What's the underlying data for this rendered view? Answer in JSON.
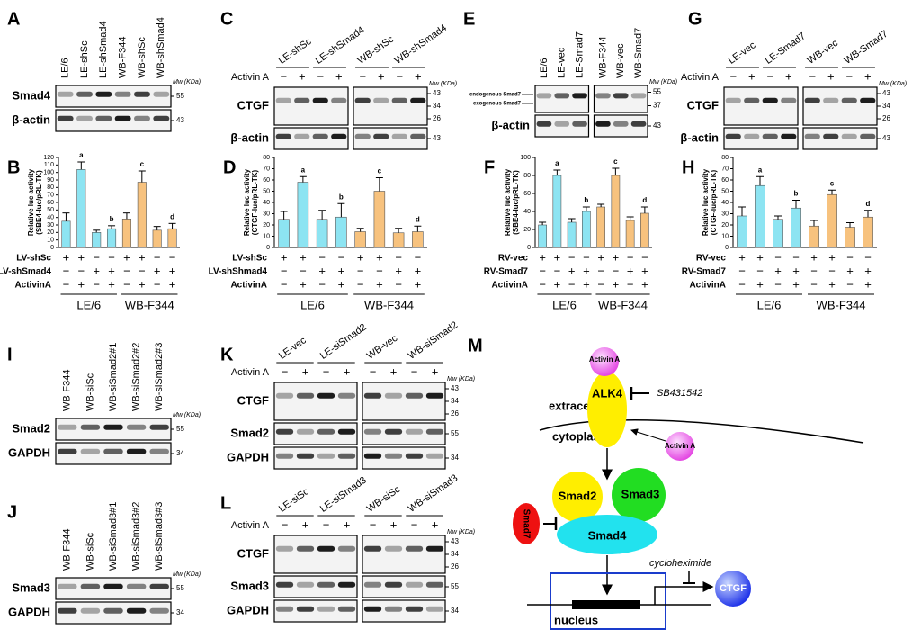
{
  "panels": {
    "A": {
      "letter": "A",
      "lanes": [
        "LE/6",
        "LE-shSc",
        "LE-shSmad4",
        "WB-F344",
        "WB-shSc",
        "WB-shSmad4"
      ],
      "mw_label": "Mw (KDa)",
      "rows": [
        {
          "protein": "Smad4",
          "mw": [
            "55"
          ]
        },
        {
          "protein": "β-actin",
          "mw": [
            "43"
          ]
        }
      ]
    },
    "C": {
      "letter": "C",
      "groups": [
        "LE-shSc",
        "LE-shSmad4",
        "WB-shSc",
        "WB-shSmad4"
      ],
      "split": 4,
      "treatment": "Activin A",
      "signs": [
        "−",
        "+",
        "−",
        "+",
        "−",
        "+",
        "−",
        "+"
      ],
      "mw_label": "Mw (KDa)",
      "rows": [
        {
          "protein": "CTGF",
          "mw": [
            "43",
            "34",
            "26"
          ]
        },
        {
          "protein": "β-actin",
          "mw": [
            "43"
          ]
        }
      ]
    },
    "E": {
      "letter": "E",
      "lanes": [
        "LE/6",
        "LE-vec",
        "LE-Smad7",
        "WB-F344",
        "WB-vec",
        "WB-Smad7"
      ],
      "split": 3,
      "mw_label": "Mw (KDa)",
      "rows": [
        {
          "labels": [
            "endogenous Smad7",
            "exogenous Smad7"
          ],
          "mw": [
            "55",
            "37"
          ]
        },
        {
          "protein": "β-actin",
          "mw": [
            "43"
          ]
        }
      ]
    },
    "G": {
      "letter": "G",
      "groups": [
        "LE-vec",
        "LE-Smad7",
        "WB-vec",
        "WB-Smad7"
      ],
      "split": 4,
      "treatment": "Activin A",
      "signs": [
        "−",
        "+",
        "−",
        "+",
        "−",
        "+",
        "−",
        "+"
      ],
      "mw_label": "Mw (KDa)",
      "rows": [
        {
          "protein": "CTGF",
          "mw": [
            "43",
            "34",
            "26"
          ]
        },
        {
          "protein": "β-actin",
          "mw": [
            "43"
          ]
        }
      ]
    },
    "I": {
      "letter": "I",
      "lanes": [
        "WB-F344",
        "WB-siSc",
        "WB-siSmad2#1",
        "WB-siSmad2#2",
        "WB-siSmad2#3"
      ],
      "mw_label": "Mw (KDa)",
      "rows": [
        {
          "protein": "Smad2",
          "mw": [
            "55"
          ]
        },
        {
          "protein": "GAPDH",
          "mw": [
            "34"
          ]
        }
      ]
    },
    "J": {
      "letter": "J",
      "lanes": [
        "WB-F344",
        "WB-siSc",
        "WB-siSmad3#1",
        "WB-siSmad3#2",
        "WB-siSmad3#3"
      ],
      "mw_label": "Mw (KDa)",
      "rows": [
        {
          "protein": "Smad3",
          "mw": [
            "55"
          ]
        },
        {
          "protein": "GAPDH",
          "mw": [
            "34"
          ]
        }
      ]
    },
    "K": {
      "letter": "K",
      "groups": [
        "LE-vec",
        "LE-siSmad2",
        "WB-vec",
        "WB-siSmad2"
      ],
      "split": 4,
      "treatment": "Activin A",
      "signs": [
        "−",
        "+",
        "−",
        "+",
        "−",
        "+",
        "−",
        "+"
      ],
      "mw_label": "Mw (KDa)",
      "rows": [
        {
          "protein": "CTGF",
          "mw": [
            "43",
            "34",
            "26"
          ]
        },
        {
          "protein": "Smad2",
          "mw": [
            "55"
          ]
        },
        {
          "protein": "GAPDH",
          "mw": [
            "34"
          ]
        }
      ]
    },
    "L": {
      "letter": "L",
      "groups": [
        "LE-siSc",
        "LE-siSmad3",
        "WB-siSc",
        "WB-siSmad3"
      ],
      "split": 4,
      "treatment": "Activin A",
      "signs": [
        "−",
        "+",
        "−",
        "+",
        "−",
        "+",
        "−",
        "+"
      ],
      "mw_label": "Mw (KDa)",
      "rows": [
        {
          "protein": "CTGF",
          "mw": [
            "43",
            "34",
            "26"
          ]
        },
        {
          "protein": "Smad3",
          "mw": [
            "55"
          ]
        },
        {
          "protein": "GAPDH",
          "mw": [
            "34"
          ]
        }
      ]
    }
  },
  "chart_data": [
    {
      "type": "bar",
      "panel": "B",
      "ylabel": [
        "Relative luc activity",
        "(SBE4-luc/pRL-TK)"
      ],
      "ylim": [
        0,
        120
      ],
      "yticks": [
        0,
        10,
        20,
        30,
        40,
        50,
        60,
        70,
        80,
        90,
        100,
        110,
        120
      ],
      "values": [
        35,
        104,
        20,
        25,
        38,
        87,
        23,
        25
      ],
      "errors": [
        11,
        10,
        3,
        4,
        8,
        15,
        5,
        7
      ],
      "colors": [
        "#8de4f2",
        "#8de4f2",
        "#8de4f2",
        "#8de4f2",
        "#f7c27e",
        "#f7c27e",
        "#f7c27e",
        "#f7c27e"
      ],
      "letters": [
        null,
        "a",
        null,
        "b",
        null,
        "c",
        null,
        "d"
      ],
      "conditions": [
        {
          "name": "LV-shSc",
          "signs": [
            "+",
            "+",
            "−",
            "−",
            "+",
            "+",
            "−",
            "−"
          ]
        },
        {
          "name": "LV-shSmad4",
          "signs": [
            "−",
            "−",
            "+",
            "+",
            "−",
            "−",
            "+",
            "+"
          ]
        },
        {
          "name": "ActivinA",
          "signs": [
            "−",
            "+",
            "−",
            "+",
            "−",
            "+",
            "−",
            "+"
          ]
        }
      ],
      "groups": [
        "LE/6",
        "WB-F344"
      ]
    },
    {
      "type": "bar",
      "panel": "D",
      "ylabel": [
        "Relative luc activity",
        "(CTGF-luc/pRL-TK)"
      ],
      "ylim": [
        0,
        80
      ],
      "yticks": [
        0,
        10,
        20,
        30,
        40,
        50,
        60,
        70,
        80
      ],
      "values": [
        25,
        58,
        25,
        27,
        14,
        50,
        13,
        14
      ],
      "errors": [
        7,
        5,
        8,
        12,
        3,
        12,
        4,
        5
      ],
      "colors": [
        "#8de4f2",
        "#8de4f2",
        "#8de4f2",
        "#8de4f2",
        "#f7c27e",
        "#f7c27e",
        "#f7c27e",
        "#f7c27e"
      ],
      "letters": [
        null,
        "a",
        null,
        "b",
        null,
        "c",
        null,
        "d"
      ],
      "conditions": [
        {
          "name": "LV-shSc",
          "signs": [
            "+",
            "+",
            "−",
            "−",
            "+",
            "+",
            "−",
            "−"
          ]
        },
        {
          "name": "LV-shShmad4",
          "signs": [
            "−",
            "−",
            "+",
            "+",
            "−",
            "−",
            "+",
            "+"
          ]
        },
        {
          "name": "ActivinA",
          "signs": [
            "−",
            "+",
            "−",
            "+",
            "−",
            "+",
            "−",
            "+"
          ]
        }
      ],
      "groups": [
        "LE/6",
        "WB-F344"
      ]
    },
    {
      "type": "bar",
      "panel": "F",
      "ylabel": [
        "Relative luc activity",
        "(SBE4-luc/pRL-TK)"
      ],
      "ylim": [
        0,
        100
      ],
      "yticks": [
        0,
        20,
        40,
        60,
        80,
        100
      ],
      "values": [
        25,
        80,
        28,
        40,
        45,
        80,
        30,
        38
      ],
      "errors": [
        3,
        6,
        4,
        5,
        3,
        8,
        4,
        7
      ],
      "colors": [
        "#8de4f2",
        "#8de4f2",
        "#8de4f2",
        "#8de4f2",
        "#f7c27e",
        "#f7c27e",
        "#f7c27e",
        "#f7c27e"
      ],
      "letters": [
        null,
        "a",
        null,
        "b",
        null,
        "c",
        null,
        "d"
      ],
      "conditions": [
        {
          "name": "RV-vec",
          "signs": [
            "+",
            "+",
            "−",
            "−",
            "+",
            "+",
            "−",
            "−"
          ]
        },
        {
          "name": "RV-Smad7",
          "signs": [
            "−",
            "−",
            "+",
            "+",
            "−",
            "−",
            "+",
            "+"
          ]
        },
        {
          "name": "ActivinA",
          "signs": [
            "−",
            "+",
            "−",
            "+",
            "−",
            "+",
            "−",
            "+"
          ]
        }
      ],
      "groups": [
        "LE/6",
        "WB-F344"
      ]
    },
    {
      "type": "bar",
      "panel": "H",
      "ylabel": [
        "Relative luc activity",
        "(CTGF-luc/pRL-TK)"
      ],
      "ylim": [
        0,
        80
      ],
      "yticks": [
        0,
        10,
        20,
        30,
        40,
        50,
        60,
        70,
        80
      ],
      "values": [
        28,
        55,
        25,
        35,
        19,
        47,
        18,
        27
      ],
      "errors": [
        8,
        8,
        3,
        7,
        5,
        4,
        4,
        6
      ],
      "colors": [
        "#8de4f2",
        "#8de4f2",
        "#8de4f2",
        "#8de4f2",
        "#f7c27e",
        "#f7c27e",
        "#f7c27e",
        "#f7c27e"
      ],
      "letters": [
        null,
        "a",
        null,
        "b",
        null,
        "c",
        null,
        "d"
      ],
      "conditions": [
        {
          "name": "RV-vec",
          "signs": [
            "+",
            "+",
            "−",
            "−",
            "+",
            "+",
            "−",
            "−"
          ]
        },
        {
          "name": "RV-Smad7",
          "signs": [
            "−",
            "−",
            "+",
            "+",
            "−",
            "−",
            "+",
            "+"
          ]
        },
        {
          "name": "ActivinA",
          "signs": [
            "−",
            "+",
            "−",
            "+",
            "−",
            "+",
            "−",
            "+"
          ]
        }
      ],
      "groups": [
        "LE/6",
        "WB-F344"
      ]
    }
  ],
  "diagram": {
    "letter": "M",
    "ligand": "Activin A",
    "ligand2": "Activin A",
    "receptor": "ALK4",
    "inhibitor": "SB431542",
    "outside": "extracellular",
    "inside": "cytoplasmic",
    "smad2": "Smad2",
    "smad3": "Smad3",
    "smad4": "Smad4",
    "smad7": "Smad7",
    "translation_inhibitor": "cycloheximide",
    "target": "CTGF",
    "compartment": "nucleus"
  }
}
